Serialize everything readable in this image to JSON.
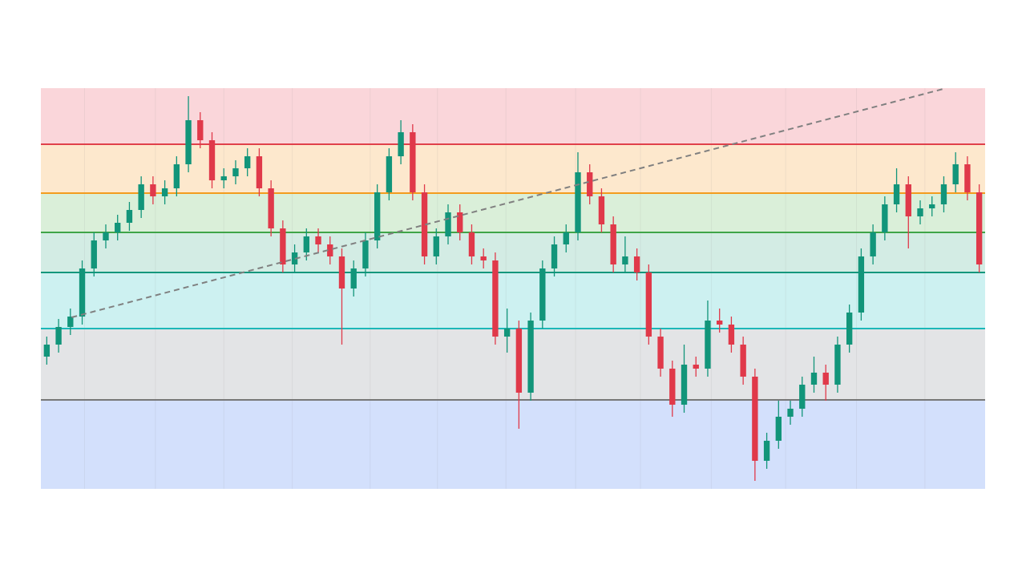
{
  "chart_data": {
    "type": "candlestick",
    "xlim": [
      -0.5,
      79.5
    ],
    "ylim": [
      0,
      100
    ],
    "xticks": [
      3.2,
      9.2,
      15.0,
      20.8,
      27.4,
      33.1,
      38.9,
      44.8,
      50.3,
      56.3,
      62.6,
      68.6,
      74.4
    ],
    "grid": true,
    "up_color": "#12957a",
    "down_color": "#e0394a",
    "levels": [
      {
        "value": 86,
        "color": "#e0404a"
      },
      {
        "value": 73.8,
        "color": "#f39c1e"
      },
      {
        "value": 64,
        "color": "#3fa548"
      },
      {
        "value": 54,
        "color": "#14977c"
      },
      {
        "value": 40,
        "color": "#1cb8b8"
      },
      {
        "value": 22.2,
        "color": "#777777"
      }
    ],
    "band_colors": [
      "#fad6da",
      "#fde8cd",
      "#daefd9",
      "#d3ece4",
      "#cdf1f1",
      "#e3e4e6",
      "#d3e0fc"
    ],
    "trendline": {
      "x": [
        2.1,
        76.2
      ],
      "y": [
        42.8,
        100
      ],
      "color": "#808080"
    },
    "open": [
      33,
      36,
      40.4,
      43,
      55,
      62,
      64,
      66.4,
      69.6,
      76,
      73,
      75,
      81,
      92,
      87,
      77,
      78,
      80,
      83,
      75,
      65,
      56,
      59,
      63,
      61,
      58,
      50,
      55,
      62,
      74,
      83,
      89,
      74,
      58,
      63,
      69,
      64,
      58,
      57,
      38,
      40,
      24,
      42,
      55,
      61,
      64,
      79,
      73,
      66,
      56,
      58,
      54,
      38,
      30,
      21,
      31,
      30,
      42,
      41,
      36,
      28,
      7,
      12,
      18,
      20,
      26,
      29,
      26,
      36,
      44,
      58,
      64,
      71,
      76,
      68,
      70,
      71,
      76,
      81,
      74
    ],
    "high": [
      38,
      42.4,
      45,
      57,
      64,
      66,
      68.4,
      71.6,
      78,
      78,
      77,
      83,
      98,
      94,
      89,
      80,
      82,
      85,
      85,
      77,
      67,
      61,
      65,
      65,
      63,
      60,
      57,
      64,
      76,
      85,
      92,
      91,
      76,
      65,
      71,
      71,
      66,
      60,
      59,
      45,
      42,
      44,
      57,
      63,
      66,
      84,
      81,
      75,
      68,
      63,
      60,
      56,
      40,
      32,
      36,
      33,
      47,
      45,
      43,
      38,
      30,
      14,
      22,
      22,
      28,
      33,
      31,
      38,
      46,
      60,
      66,
      73,
      80,
      78,
      72,
      73,
      78,
      84,
      83,
      76
    ],
    "low": [
      31,
      34,
      38.4,
      41,
      53,
      60,
      62,
      64.4,
      67.6,
      71,
      71,
      73,
      79,
      85,
      75,
      75,
      76,
      78,
      73,
      63,
      54,
      54,
      57,
      59,
      56,
      36,
      48,
      53,
      60,
      72,
      81,
      72,
      56,
      56,
      61,
      62,
      56,
      55,
      36,
      34,
      15,
      22,
      40,
      53,
      59,
      62,
      71,
      64,
      54,
      54,
      52,
      36,
      28,
      18,
      19,
      28,
      28,
      39,
      34,
      26,
      2,
      5,
      10,
      16,
      18,
      24,
      22,
      24,
      34,
      42,
      56,
      62,
      69,
      60,
      66,
      68,
      69,
      74,
      72,
      54
    ],
    "close": [
      36,
      40.4,
      43,
      55,
      62,
      64,
      66.4,
      69.6,
      76,
      73,
      75,
      81,
      92,
      87,
      77,
      78,
      80,
      83,
      75,
      65,
      56,
      59,
      63,
      61,
      58,
      50,
      55,
      62,
      74,
      83,
      89,
      74,
      58,
      63,
      69,
      64,
      58,
      57,
      38,
      40,
      24,
      42,
      55,
      61,
      64,
      79,
      73,
      66,
      56,
      58,
      54,
      38,
      30,
      21,
      31,
      30,
      42,
      41,
      36,
      28,
      7,
      12,
      18,
      20,
      26,
      29,
      26,
      36,
      44,
      58,
      64,
      71,
      76,
      68,
      70,
      71,
      76,
      81,
      74,
      56
    ]
  }
}
